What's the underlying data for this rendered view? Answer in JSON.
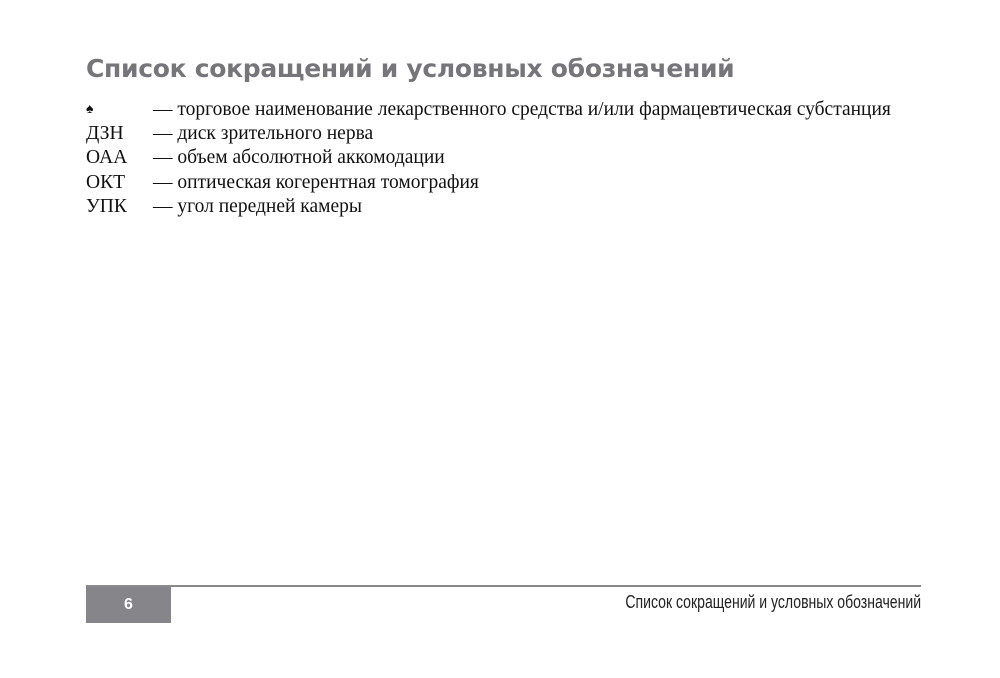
{
  "title": "Список сокращений и условных обозначений",
  "abbreviations": [
    {
      "abbr": "♠",
      "definition": "— торговое наименование лекарственного средства и/или фармацевтическая субстанция"
    },
    {
      "abbr": "ДЗН",
      "definition": "— диск зрительного нерва"
    },
    {
      "abbr": "ОАА",
      "definition": "— объем абсолютной аккомодации"
    },
    {
      "abbr": "ОКТ",
      "definition": "— оптическая когерентная томография"
    },
    {
      "abbr": "УПК",
      "definition": "— угол передней камеры"
    }
  ],
  "footer": {
    "page_number": "6",
    "running_title": "Список сокращений и условных обозначений"
  }
}
